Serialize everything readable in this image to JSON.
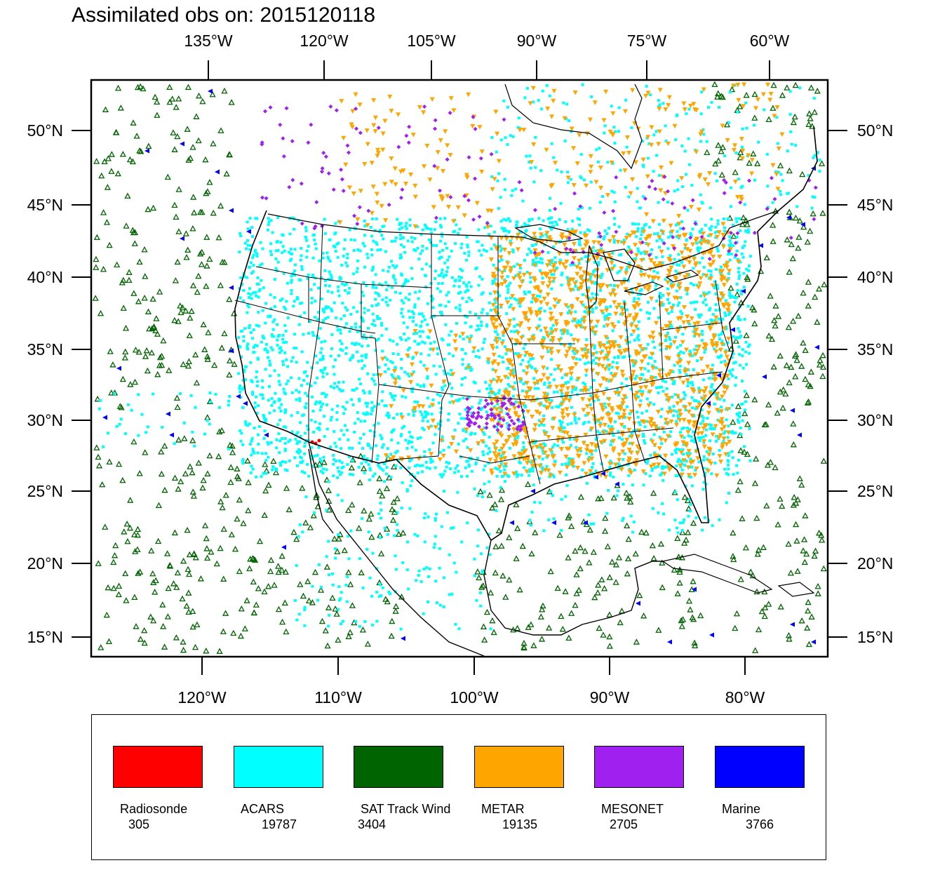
{
  "title": "Assimilated obs on: 2015120118",
  "top_lon_labels": [
    "135°W",
    "120°W",
    "105°W",
    "90°W",
    "75°W",
    "60°W"
  ],
  "bottom_lon_labels": [
    "120°W",
    "110°W",
    "100°W",
    "90°W",
    "80°W"
  ],
  "lat_labels": [
    "50°N",
    "45°N",
    "40°N",
    "35°N",
    "30°N",
    "25°N",
    "20°N",
    "15°N"
  ],
  "legend": [
    {
      "name": "Radiosonde",
      "count": "305",
      "color": "#ff0000"
    },
    {
      "name": "ACARS",
      "count": "19787",
      "color": "#00ffff"
    },
    {
      "name": "SAT Track Wind",
      "count": "3404",
      "color": "#006400"
    },
    {
      "name": "METAR",
      "count": "19135",
      "color": "#ffa500"
    },
    {
      "name": "MESONET",
      "count": "2705",
      "color": "#a020f0"
    },
    {
      "name": "Marine",
      "count": "3766",
      "color": "#0000ff"
    }
  ]
}
